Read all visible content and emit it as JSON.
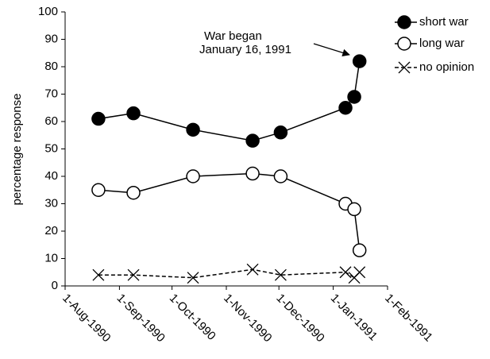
{
  "chart_data": {
    "type": "line",
    "y_label": "percentage response",
    "annotation": {
      "lines": [
        "War began",
        "January 16, 1991"
      ]
    },
    "x": [
      "1990-08-20",
      "1990-09-09",
      "1990-10-13",
      "1990-11-16",
      "1990-12-02",
      "1991-01-08",
      "1991-01-13",
      "1991-01-16"
    ],
    "series": [
      {
        "name": "short war",
        "color": "#000000",
        "marker": "filled-circle",
        "dashed": false,
        "values": [
          61,
          63,
          57,
          53,
          56,
          65,
          69,
          82
        ]
      },
      {
        "name": "long war",
        "color": "#000000",
        "marker": "open-circle",
        "dashed": false,
        "values": [
          35,
          34,
          40,
          41,
          40,
          30,
          28,
          13
        ]
      },
      {
        "name": "no opinion",
        "color": "#000000",
        "marker": "cross",
        "dashed": true,
        "values": [
          4,
          4,
          3,
          6,
          4,
          5,
          3,
          5
        ]
      }
    ],
    "xlim": [
      "1990-08-01",
      "1991-02-01"
    ],
    "xticks": [
      {
        "value": "1990-08-01",
        "label": "1-Aug-1990"
      },
      {
        "value": "1990-09-01",
        "label": "1-Sep-1990"
      },
      {
        "value": "1990-10-01",
        "label": "1-Oct-1990"
      },
      {
        "value": "1990-11-01",
        "label": "1-Nov-1990"
      },
      {
        "value": "1990-12-01",
        "label": "1-Dec-1990"
      },
      {
        "value": "1991-01-01",
        "label": "1-Jan-1991"
      },
      {
        "value": "1991-02-01",
        "label": "1-Feb-1991"
      }
    ],
    "ylim": [
      0,
      100
    ],
    "yticks": [
      0,
      10,
      20,
      30,
      40,
      50,
      60,
      70,
      80,
      90,
      100
    ],
    "grid": false,
    "legend": "top-right"
  }
}
